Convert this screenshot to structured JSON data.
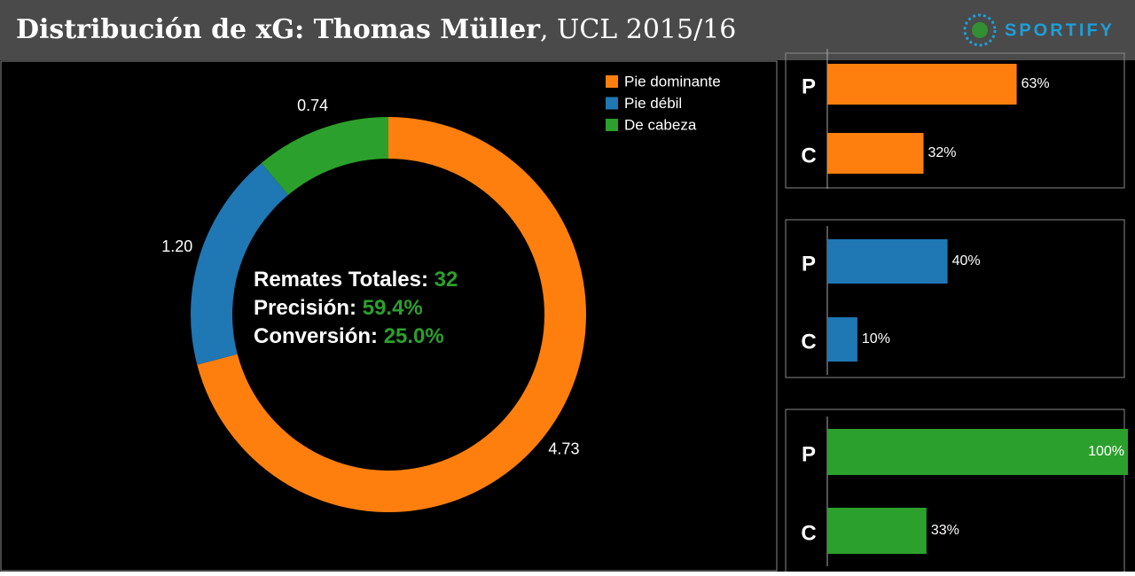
{
  "header": {
    "title": "Distribución de xG: Thomas Müller",
    "subtitle": ", UCL 2015/16",
    "logo": "SPORTIFY"
  },
  "chart_data": [
    {
      "type": "donut",
      "categories": [
        "Pie dominante",
        "Pie débil",
        "De cabeza"
      ],
      "values": [
        4.73,
        1.2,
        0.74
      ],
      "value_labels": [
        "4.73",
        "1.20",
        "0.74"
      ],
      "colors": [
        "#ff7f0e",
        "#1f77b4",
        "#2ca02c"
      ],
      "legend": "top-right",
      "annotations": [
        {
          "label": "Remates Totales:",
          "value": "32"
        },
        {
          "label": "Precisión:",
          "value": "59.4%"
        },
        {
          "label": "Conversión:",
          "value": "25.0%"
        }
      ]
    },
    {
      "type": "hbar",
      "categories": [
        "P",
        "C"
      ],
      "values": [
        63,
        32
      ],
      "value_labels": [
        "63%",
        "32%"
      ],
      "color": "#ff7f0e",
      "xlim": [
        0,
        100
      ]
    },
    {
      "type": "hbar",
      "categories": [
        "P",
        "C"
      ],
      "values": [
        40,
        10
      ],
      "value_labels": [
        "40%",
        "10%"
      ],
      "color": "#1f77b4",
      "xlim": [
        0,
        100
      ]
    },
    {
      "type": "hbar",
      "categories": [
        "P",
        "C"
      ],
      "values": [
        100,
        33
      ],
      "value_labels": [
        "100%",
        "33%"
      ],
      "color": "#2ca02c",
      "xlim": [
        0,
        100
      ]
    }
  ]
}
